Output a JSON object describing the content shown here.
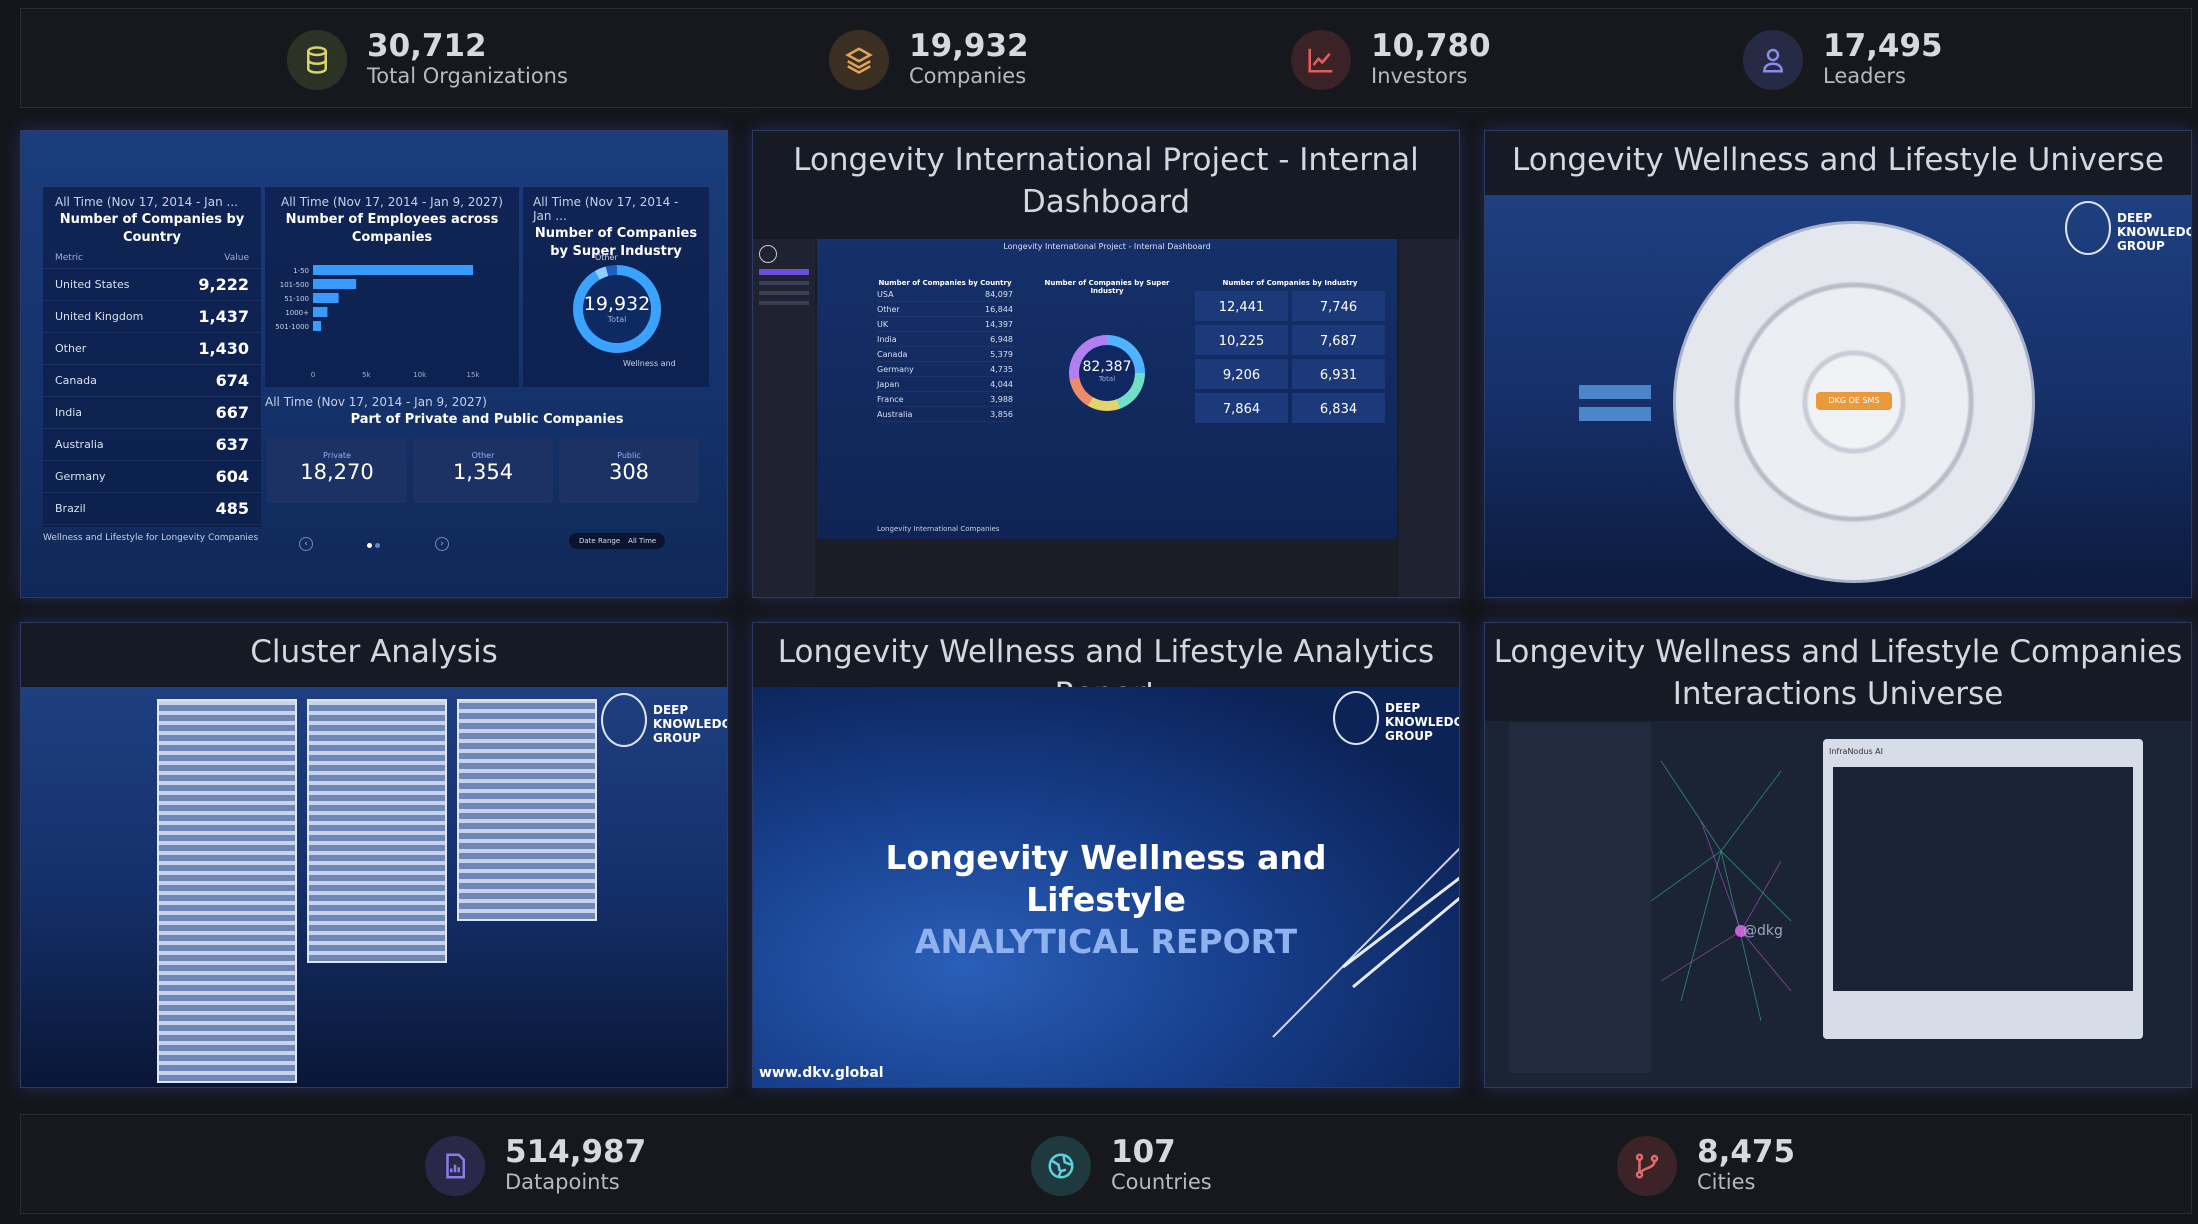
{
  "top_stats": [
    {
      "value": "30,712",
      "label": "Total Organizations",
      "icon": "database-icon",
      "color": "#d8d36b",
      "bg": "#2c3326"
    },
    {
      "value": "19,932",
      "label": "Companies",
      "icon": "layers-icon",
      "color": "#e0a558",
      "bg": "#3a2f22"
    },
    {
      "value": "10,780",
      "label": "Investors",
      "icon": "chart-line-icon",
      "color": "#e35d5d",
      "bg": "#3a2226"
    },
    {
      "value": "17,495",
      "label": "Leaders",
      "icon": "user-icon",
      "color": "#8a8de8",
      "bg": "#262a44"
    }
  ],
  "bottom_stats": [
    {
      "value": "514,987",
      "label": "Datapoints",
      "icon": "report-icon",
      "color": "#8a7de8",
      "bg": "#2a2748"
    },
    {
      "value": "107",
      "label": "Countries",
      "icon": "globe-icon",
      "color": "#5fd0e0",
      "bg": "#1f3a3f"
    },
    {
      "value": "8,475",
      "label": "Cities",
      "icon": "branch-icon",
      "color": "#e36a6a",
      "bg": "#3b2327"
    }
  ],
  "cards": {
    "c1": {
      "panel_country": {
        "period": "All Time (Nov 17, 2014 - Jan ...",
        "title": "Number of Companies by Country",
        "col_metric": "Metric",
        "col_value": "Value",
        "rows": [
          {
            "name": "United States",
            "value": "9,222"
          },
          {
            "name": "United Kingdom",
            "value": "1,437"
          },
          {
            "name": "Other",
            "value": "1,430"
          },
          {
            "name": "Canada",
            "value": "674"
          },
          {
            "name": "India",
            "value": "667"
          },
          {
            "name": "Australia",
            "value": "637"
          },
          {
            "name": "Germany",
            "value": "604"
          },
          {
            "name": "Brazil",
            "value": "485"
          }
        ]
      },
      "panel_employees": {
        "period": "All Time (Nov 17, 2014 - Jan 9, 2027)",
        "title": "Number of Employees across Companies",
        "bars": [
          {
            "label": "1-50",
            "fraction": 1.0
          },
          {
            "label": "101-500",
            "fraction": 0.27
          },
          {
            "label": "51-100",
            "fraction": 0.16
          },
          {
            "label": "1000+",
            "fraction": 0.09
          },
          {
            "label": "501-1000",
            "fraction": 0.05
          }
        ],
        "ticks": [
          "0",
          "5k",
          "10k",
          "15k"
        ]
      },
      "panel_industry": {
        "period": "All Time (Nov 17, 2014 - Jan ...",
        "title": "Number of Companies by Super Industry",
        "donut_value": "19,932",
        "donut_label": "Total",
        "segment_top": "Other",
        "segment_bottom": "Wellness and"
      },
      "panel_private": {
        "period": "All Time (Nov 17, 2014 - Jan 9, 2027)",
        "title": "Part of Private and Public Companies",
        "items": [
          {
            "label": "Private",
            "value": "18,270"
          },
          {
            "label": "Other",
            "value": "1,354"
          },
          {
            "label": "Public",
            "value": "308"
          }
        ]
      },
      "footer_text": "Wellness and Lifestyle for Longevity Companies",
      "date_range_label": "Date Range",
      "date_range_value": "All Time"
    },
    "c2": {
      "title": "Longevity International Project - Internal Dashboard",
      "inner_title": "Longevity International Project - Internal Dashboard",
      "inner_country_title": "Number of Companies by Country",
      "inner_rows": [
        {
          "name": "USA",
          "value": "84,097"
        },
        {
          "name": "Other",
          "value": "16,844"
        },
        {
          "name": "UK",
          "value": "14,397"
        },
        {
          "name": "India",
          "value": "6,948"
        },
        {
          "name": "Canada",
          "value": "5,379"
        },
        {
          "name": "Germany",
          "value": "4,735"
        },
        {
          "name": "Japan",
          "value": "4,044"
        },
        {
          "name": "France",
          "value": "3,988"
        },
        {
          "name": "Australia",
          "value": "3,856"
        }
      ],
      "inner_super_title": "Number of Companies by Super Industry",
      "donut_value": "82,387",
      "donut_label": "Total",
      "inner_industry_title": "Number of Companies by Industry",
      "industry_values": [
        "12,441",
        "7,746",
        "10,225",
        "7,687",
        "9,206",
        "6,931",
        "7,864",
        "6,834"
      ],
      "footer_text": "Longevity International Companies"
    },
    "c3": {
      "title": "Longevity Wellness and Lifestyle Universe",
      "center_label": "DKG OE SMS",
      "logo_line1": "DEEP",
      "logo_line2": "KNOWLEDGE",
      "logo_line3": "GROUP"
    },
    "c4": {
      "title": "Cluster Analysis",
      "logo_line1": "DEEP",
      "logo_line2": "KNOWLEDGE",
      "logo_line3": "GROUP"
    },
    "c5": {
      "title": "Longevity Wellness and Lifestyle Analytics Report",
      "report_line1": "Longevity Wellness and",
      "report_line2": "Lifestyle",
      "report_line3": "ANALYTICAL REPORT",
      "url": "www.dkv.global",
      "logo_line1": "DEEP",
      "logo_line2": "KNOWLEDGE",
      "logo_line3": "GROUP"
    },
    "c6": {
      "title": "Longevity Wellness and Lifestyle Companies Interactions Universe",
      "panel_title": "InfraNodus AI",
      "center_node": "@dkg"
    }
  }
}
